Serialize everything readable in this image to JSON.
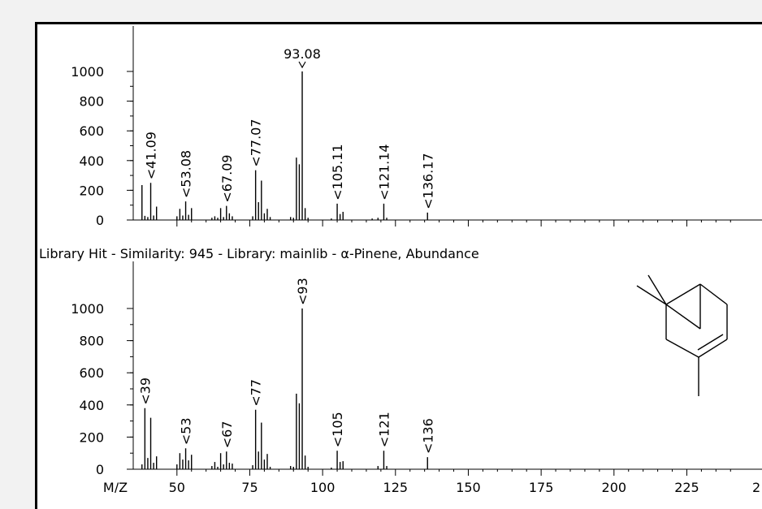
{
  "library_hit_header": "Library Hit - Similarity: 945 - Library: mainlib - α-Pinene, Abundance",
  "chart_data": [
    {
      "type": "bar",
      "panel": "sample",
      "ylim": [
        0,
        1130
      ],
      "yticks": [
        0,
        200,
        400,
        600,
        800,
        1000
      ],
      "xlim": [
        35,
        245
      ],
      "peaks": [
        [
          38,
          235
        ],
        [
          39,
          28
        ],
        [
          40,
          20
        ],
        [
          41,
          250
        ],
        [
          42,
          30
        ],
        [
          43,
          90
        ],
        [
          50,
          25
        ],
        [
          51,
          75
        ],
        [
          52,
          30
        ],
        [
          53,
          125
        ],
        [
          54,
          35
        ],
        [
          55,
          80
        ],
        [
          62,
          15
        ],
        [
          63,
          25
        ],
        [
          64,
          15
        ],
        [
          65,
          80
        ],
        [
          66,
          20
        ],
        [
          67,
          95
        ],
        [
          68,
          45
        ],
        [
          69,
          25
        ],
        [
          76,
          25
        ],
        [
          77,
          335
        ],
        [
          78,
          120
        ],
        [
          79,
          265
        ],
        [
          80,
          45
        ],
        [
          81,
          75
        ],
        [
          82,
          20
        ],
        [
          89,
          20
        ],
        [
          90,
          15
        ],
        [
          91,
          420
        ],
        [
          92,
          375
        ],
        [
          93,
          1000
        ],
        [
          94,
          80
        ],
        [
          95,
          15
        ],
        [
          103,
          10
        ],
        [
          105,
          110
        ],
        [
          106,
          40
        ],
        [
          107,
          55
        ],
        [
          117,
          10
        ],
        [
          119,
          15
        ],
        [
          121,
          110
        ],
        [
          122,
          15
        ],
        [
          136,
          50
        ]
      ],
      "annotations": [
        {
          "x": 41.09,
          "label": "41.09",
          "rotate": true
        },
        {
          "x": 53.08,
          "label": "53.08",
          "rotate": true
        },
        {
          "x": 67.09,
          "label": "67.09",
          "rotate": true
        },
        {
          "x": 77.07,
          "label": "77.07",
          "rotate": true
        },
        {
          "x": 93.08,
          "label": "93.08",
          "rotate": false
        },
        {
          "x": 105.11,
          "label": "105.11",
          "rotate": true
        },
        {
          "x": 121.14,
          "label": "121.14",
          "rotate": true
        },
        {
          "x": 136.17,
          "label": "136.17",
          "rotate": true
        }
      ]
    },
    {
      "type": "bar",
      "panel": "library",
      "ylim": [
        0,
        1130
      ],
      "yticks": [
        0,
        200,
        400,
        600,
        800,
        1000
      ],
      "xlim": [
        35,
        245
      ],
      "xticks": [
        50,
        75,
        100,
        125,
        150,
        175,
        200,
        225
      ],
      "xaxis_prefix": "M/Z",
      "partial_tick_label": "2",
      "peaks": [
        [
          38,
          30
        ],
        [
          39,
          380
        ],
        [
          40,
          70
        ],
        [
          41,
          320
        ],
        [
          42,
          40
        ],
        [
          43,
          80
        ],
        [
          50,
          30
        ],
        [
          51,
          100
        ],
        [
          52,
          60
        ],
        [
          53,
          130
        ],
        [
          54,
          55
        ],
        [
          55,
          90
        ],
        [
          62,
          20
        ],
        [
          63,
          45
        ],
        [
          64,
          15
        ],
        [
          65,
          100
        ],
        [
          66,
          30
        ],
        [
          67,
          110
        ],
        [
          68,
          40
        ],
        [
          69,
          35
        ],
        [
          76,
          25
        ],
        [
          77,
          370
        ],
        [
          78,
          110
        ],
        [
          79,
          290
        ],
        [
          80,
          60
        ],
        [
          81,
          95
        ],
        [
          82,
          15
        ],
        [
          89,
          20
        ],
        [
          90,
          15
        ],
        [
          91,
          470
        ],
        [
          92,
          410
        ],
        [
          93,
          1000
        ],
        [
          94,
          85
        ],
        [
          95,
          15
        ],
        [
          103,
          10
        ],
        [
          105,
          115
        ],
        [
          106,
          45
        ],
        [
          107,
          50
        ],
        [
          119,
          20
        ],
        [
          121,
          115
        ],
        [
          122,
          20
        ],
        [
          136,
          75
        ]
      ],
      "annotations": [
        {
          "x": 39,
          "label": "39",
          "rotate": true
        },
        {
          "x": 53,
          "label": "53",
          "rotate": true
        },
        {
          "x": 67,
          "label": "67",
          "rotate": true
        },
        {
          "x": 77,
          "label": "77",
          "rotate": true
        },
        {
          "x": 93,
          "label": "93",
          "rotate": true
        },
        {
          "x": 105,
          "label": "105",
          "rotate": true
        },
        {
          "x": 121,
          "label": "121",
          "rotate": true
        },
        {
          "x": 136,
          "label": "136",
          "rotate": true
        }
      ]
    }
  ]
}
